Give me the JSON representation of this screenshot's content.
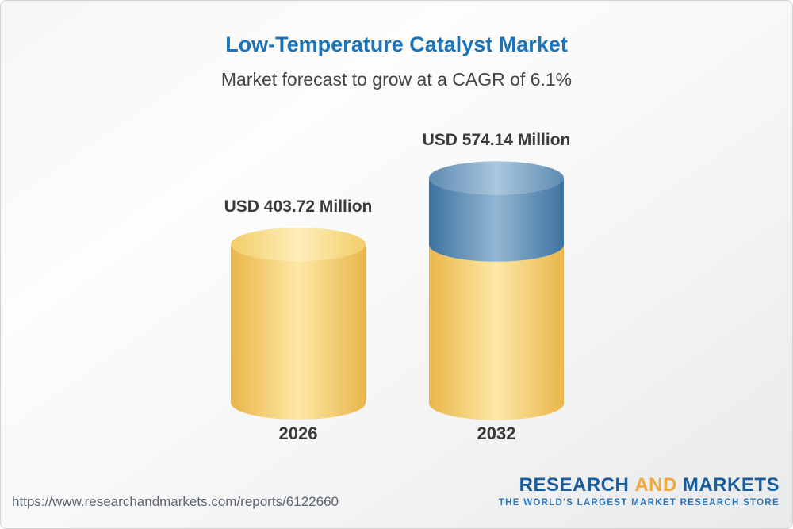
{
  "header": {
    "title": "Low-Temperature Catalyst Market",
    "subtitle": "Market forecast to grow at a CAGR of 6.1%"
  },
  "chart_data": {
    "type": "bar",
    "variant": "3d-cylinder",
    "title": "Low-Temperature Catalyst Market",
    "subtitle": "Market forecast to grow at a CAGR of 6.1%",
    "cagr": "6.1%",
    "unit": "USD Million",
    "categories": [
      "2026",
      "2032"
    ],
    "values": [
      403.72,
      574.14
    ],
    "value_labels": [
      "USD 403.72 Million",
      "USD 574.14 Million"
    ],
    "baseline_color": "#f5d271",
    "growth_color": "#4e80ab",
    "note": "2032 cylinder shows the 2026 baseline in yellow with incremental growth in blue"
  },
  "footer": {
    "url": "https://www.researchandmarkets.com/reports/6122660",
    "logo": {
      "line1_part1": "RESEARCH",
      "line1_part2": "AND",
      "line1_part3": "MARKETS",
      "tagline": "THE WORLD'S LARGEST MARKET RESEARCH STORE"
    }
  },
  "colors": {
    "title_blue": "#1c74b8",
    "logo_blue": "#1a5d9a",
    "logo_gold": "#f0a93b",
    "tagline_blue": "#2e75b6"
  }
}
